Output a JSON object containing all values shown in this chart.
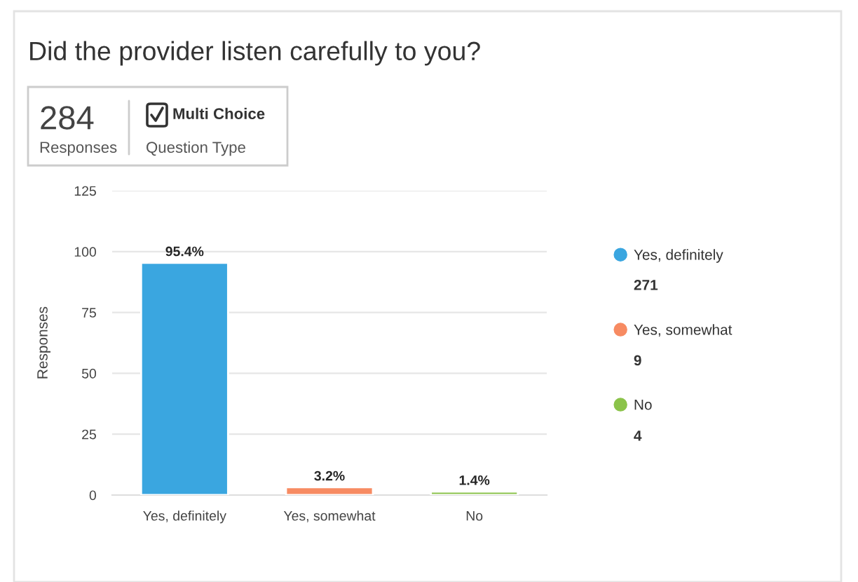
{
  "chart_data": {
    "type": "bar",
    "title": "Did the provider listen carefully to you?",
    "categories": [
      "Yes, definitely",
      "Yes, somewhat",
      "No"
    ],
    "stacked": true,
    "series": [
      {
        "name": "Yes, definitely",
        "color": "#3aa6e0",
        "values": [
          95.4,
          null,
          null
        ],
        "value_labels": [
          "95.4%",
          null,
          null
        ]
      },
      {
        "name": "Yes, somewhat",
        "color": "#f78b62",
        "values": [
          null,
          3.2,
          null
        ],
        "value_labels": [
          null,
          "3.2%",
          null
        ]
      },
      {
        "name": "No",
        "color": "#8bc34a",
        "values": [
          null,
          null,
          1.4
        ],
        "value_labels": [
          null,
          null,
          "1.4%"
        ]
      }
    ],
    "ylabel": "Responses",
    "ylim": [
      0,
      125
    ],
    "yticks": [
      0,
      25,
      50,
      75,
      100,
      125
    ],
    "grid": "y",
    "legend": "right",
    "annotations": [
      "284",
      "Responses",
      "Multi Choice",
      "Question Type",
      "271",
      "9",
      "4"
    ]
  }
}
